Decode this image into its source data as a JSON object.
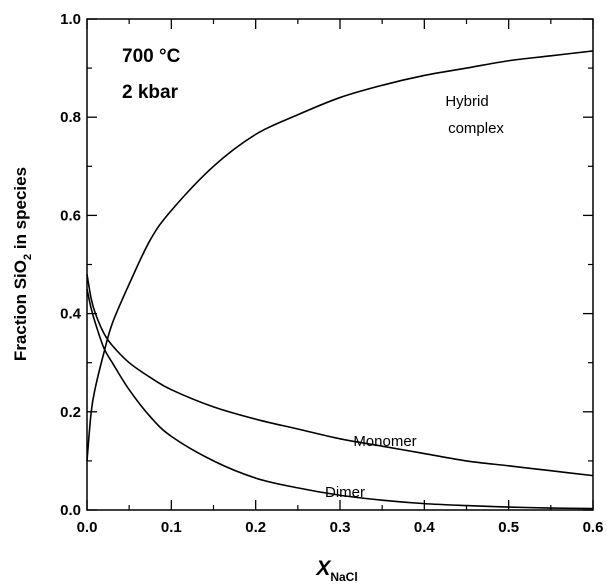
{
  "chart_data": {
    "type": "line",
    "xlabel": "X",
    "xlabel_sub": "NaCl",
    "ylabel": "Fraction SiO",
    "ylabel_sub": "2",
    "ylabel_suffix": " in species",
    "xlim": [
      0,
      0.6
    ],
    "ylim": [
      0,
      1.0
    ],
    "x_ticks": [
      "0.0",
      "0.1",
      "0.2",
      "0.3",
      "0.4",
      "0.5",
      "0.6"
    ],
    "y_ticks": [
      "0.0",
      "0.2",
      "0.4",
      "0.6",
      "0.8",
      "1.0"
    ],
    "grid": false,
    "annotations": {
      "temperature": "700 °C",
      "pressure": "2 kbar",
      "hybrid_line1": "Hybrid",
      "hybrid_line2": "complex",
      "monomer": "Monomer",
      "dimer": "Dimer"
    },
    "series": [
      {
        "name": "Hybrid complex",
        "x": [
          0.0,
          0.005,
          0.01,
          0.02,
          0.03,
          0.05,
          0.075,
          0.1,
          0.15,
          0.2,
          0.25,
          0.3,
          0.35,
          0.4,
          0.45,
          0.5,
          0.55,
          0.6
        ],
        "y": [
          0.1,
          0.2,
          0.25,
          0.32,
          0.38,
          0.46,
          0.55,
          0.61,
          0.7,
          0.765,
          0.805,
          0.84,
          0.865,
          0.885,
          0.9,
          0.915,
          0.925,
          0.935
        ]
      },
      {
        "name": "Monomer",
        "x": [
          0.0,
          0.005,
          0.01,
          0.02,
          0.03,
          0.05,
          0.075,
          0.1,
          0.15,
          0.2,
          0.25,
          0.3,
          0.35,
          0.4,
          0.45,
          0.5,
          0.55,
          0.6
        ],
        "y": [
          0.48,
          0.43,
          0.4,
          0.36,
          0.335,
          0.3,
          0.27,
          0.245,
          0.21,
          0.185,
          0.165,
          0.145,
          0.13,
          0.115,
          0.1,
          0.09,
          0.08,
          0.07
        ]
      },
      {
        "name": "Dimer",
        "x": [
          0.0,
          0.005,
          0.01,
          0.02,
          0.03,
          0.05,
          0.075,
          0.1,
          0.15,
          0.2,
          0.25,
          0.3,
          0.35,
          0.4,
          0.45,
          0.5,
          0.55,
          0.6
        ],
        "y": [
          0.45,
          0.41,
          0.38,
          0.33,
          0.3,
          0.245,
          0.19,
          0.15,
          0.1,
          0.065,
          0.045,
          0.03,
          0.02,
          0.013,
          0.009,
          0.006,
          0.004,
          0.003
        ]
      }
    ]
  }
}
